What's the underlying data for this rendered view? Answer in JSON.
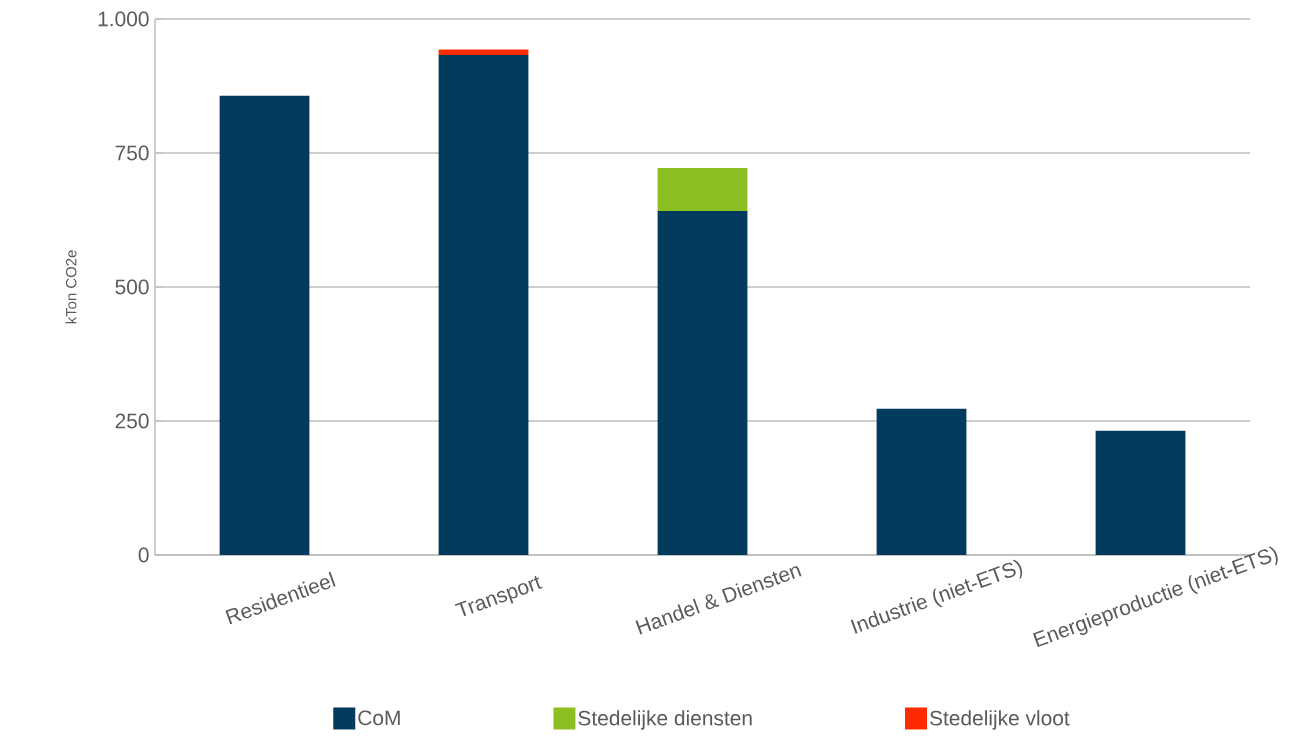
{
  "chart_data": {
    "type": "bar",
    "stacked": true,
    "ylabel": "kTon CO2e",
    "categories": [
      "Residentieel",
      "Transport",
      "Handel & Diensten",
      "Industrie (niet-ETS)",
      "Energieproductie (niet-ETS)"
    ],
    "series": [
      {
        "name": "CoM",
        "color": "#023b5c",
        "values": [
          857,
          933,
          642,
          273,
          232
        ]
      },
      {
        "name": "Stedelijke diensten",
        "color": "#8cbf21",
        "values": [
          0,
          0,
          80,
          0,
          0
        ]
      },
      {
        "name": "Stedelijke vloot",
        "color": "#fe2a00",
        "values": [
          0,
          10,
          0,
          0,
          0
        ]
      }
    ],
    "ylim": [
      0,
      1000
    ],
    "yticks": [
      0,
      250,
      500,
      750,
      {
        "value": 1000,
        "label": "1.000"
      }
    ],
    "grid": "y",
    "legend": "bottom"
  }
}
